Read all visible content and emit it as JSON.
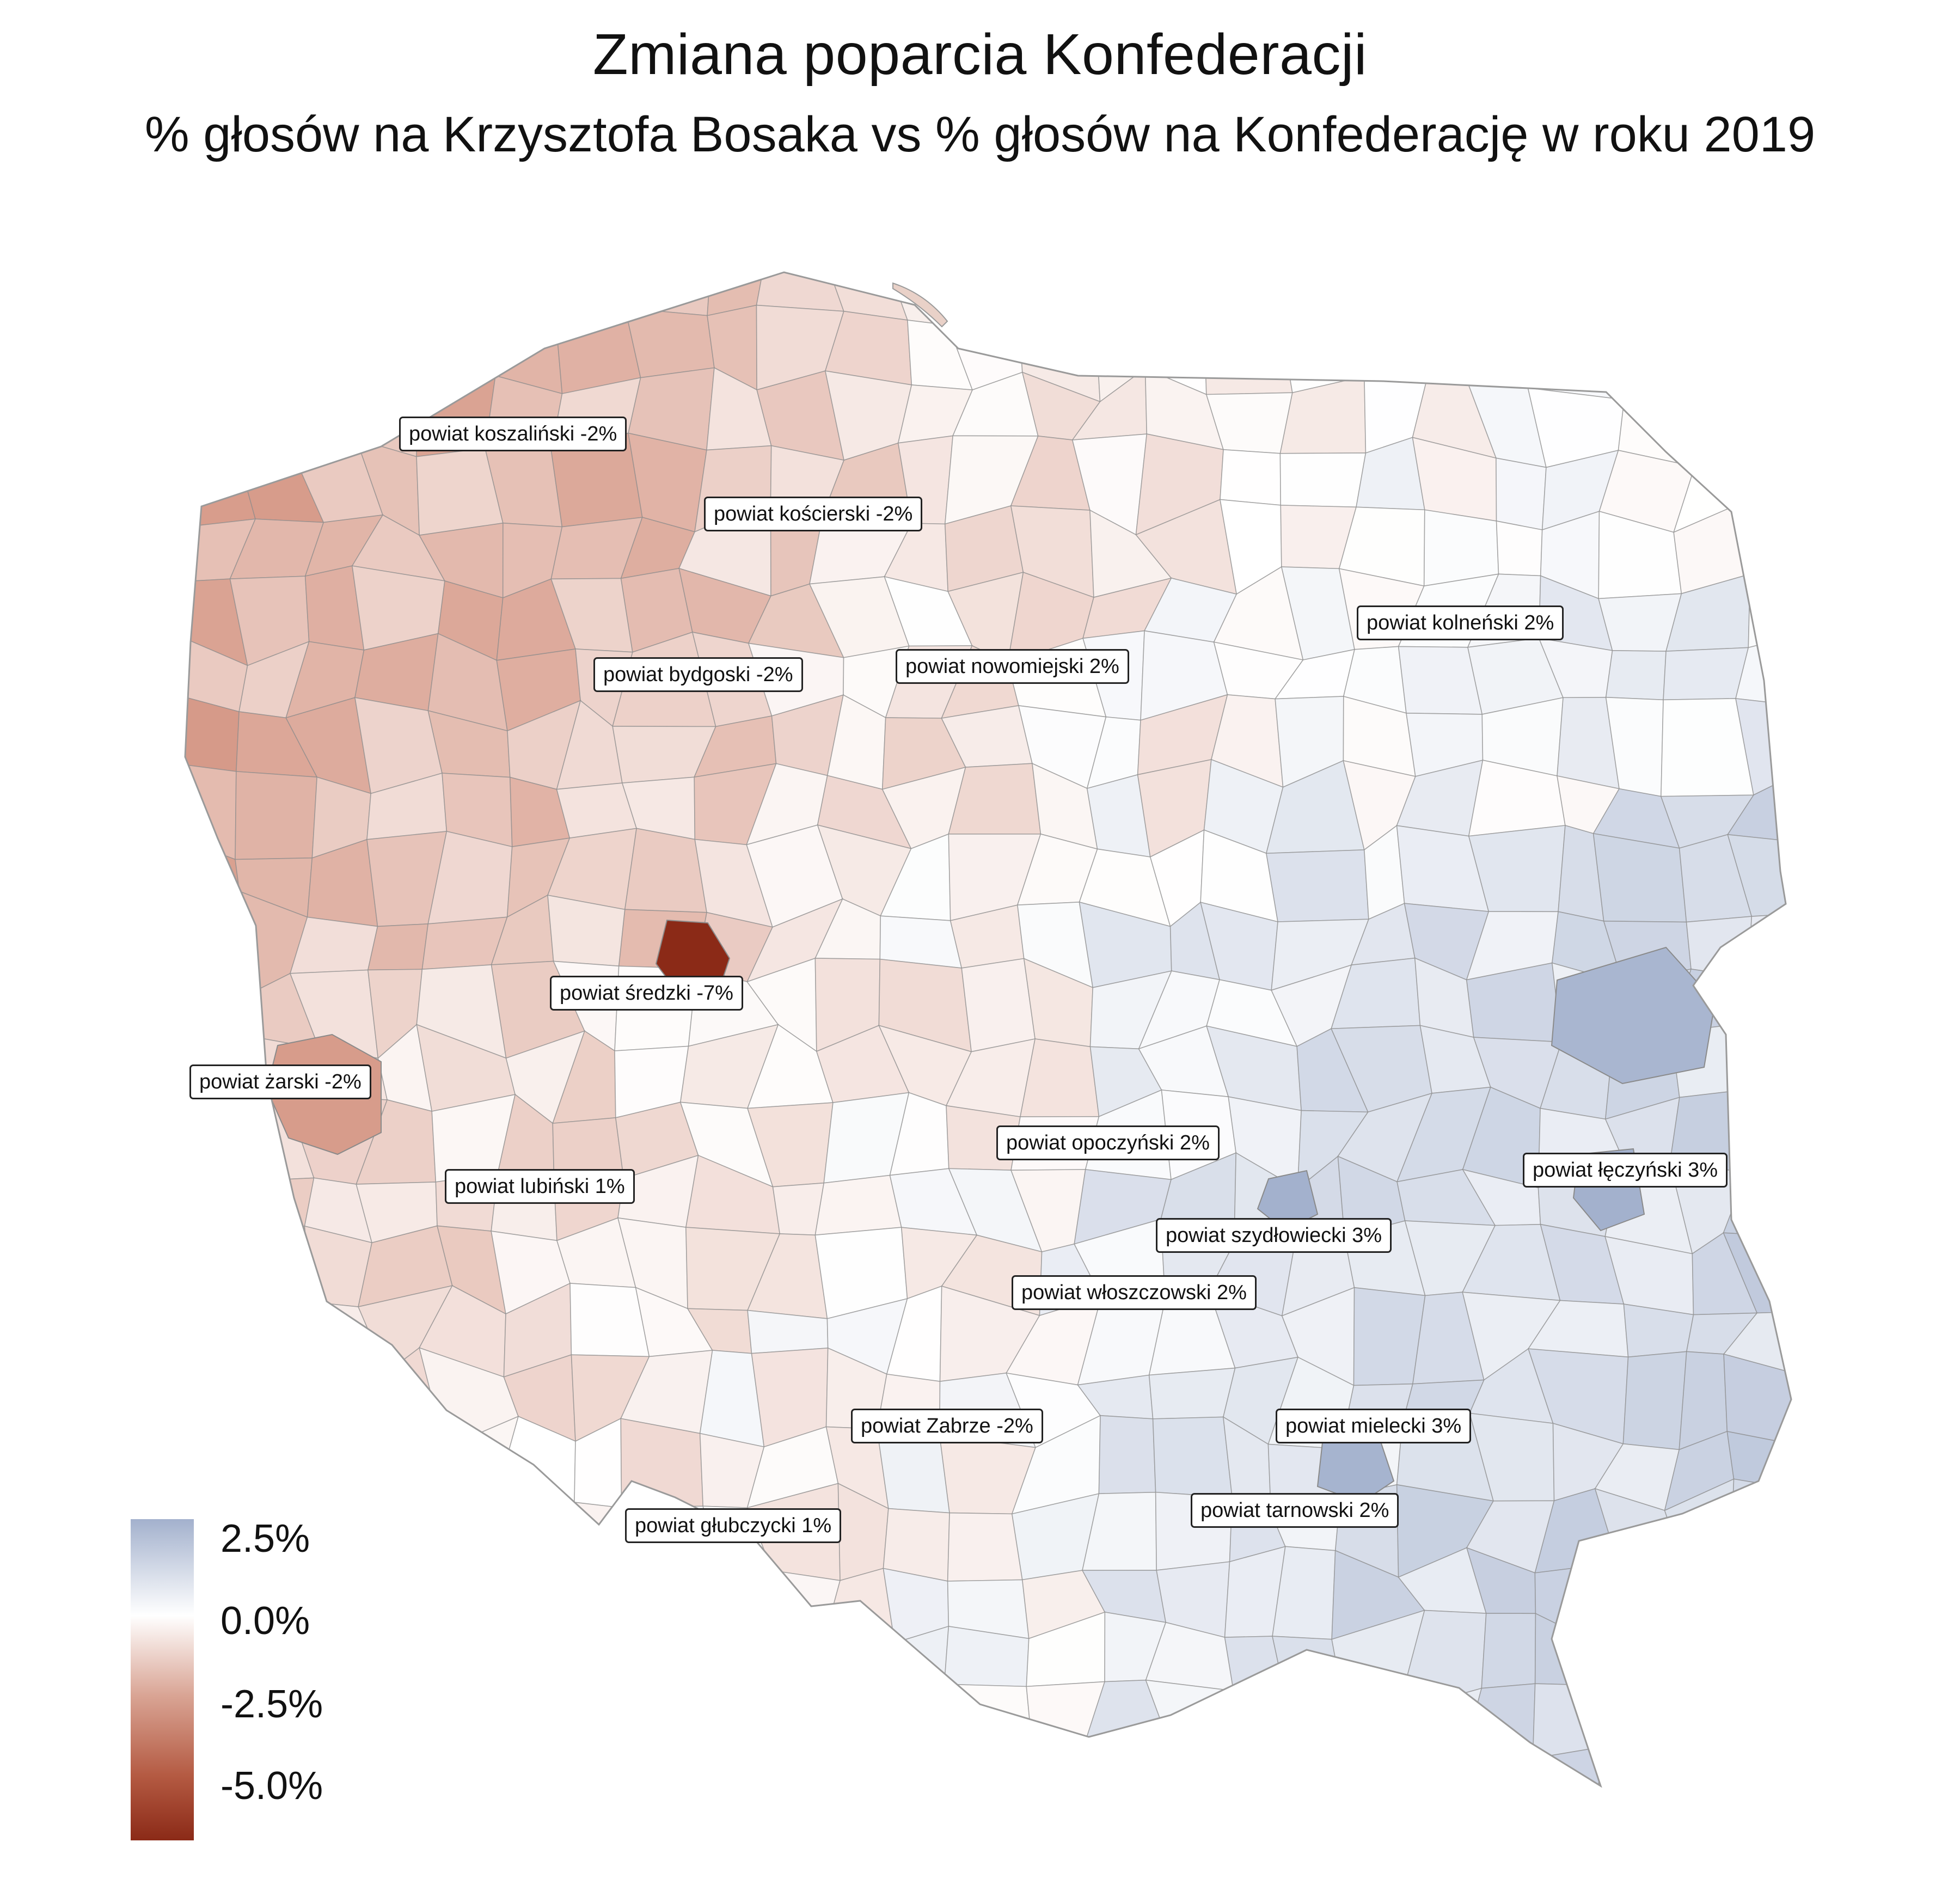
{
  "title": "Zmiana poparcia Konfederacji",
  "subtitle": "% głosów na Krzysztofa Bosaka vs % głosów na Konfederację w roku 2019",
  "colors": {
    "positive_max": "#a3b1cd",
    "neutral": "#ffffff",
    "negative_mid": "#c56f56",
    "negative_max": "#8b2a17",
    "border": "#8a8a8a"
  },
  "legend": {
    "labels": [
      "2.5%",
      "0.0%",
      "-2.5%",
      "-5.0%"
    ],
    "values": [
      2.5,
      0.0,
      -2.5,
      -5.0
    ],
    "min": -7,
    "max": 3
  },
  "callouts": [
    {
      "text": "powiat koszaliński -2%",
      "value": -2
    },
    {
      "text": "powiat kościerski -2%",
      "value": -2
    },
    {
      "text": "powiat kolneński 2%",
      "value": 2
    },
    {
      "text": "powiat bydgoski -2%",
      "value": -2
    },
    {
      "text": "powiat nowomiejski 2%",
      "value": 2
    },
    {
      "text": "powiat średzki -7%",
      "value": -7
    },
    {
      "text": "powiat żarski -2%",
      "value": -2
    },
    {
      "text": "powiat opoczyński 2%",
      "value": 2
    },
    {
      "text": "powiat łęczyński 3%",
      "value": 3
    },
    {
      "text": "powiat lubiński 1%",
      "value": 1
    },
    {
      "text": "powiat szydłowiecki 3%",
      "value": 3
    },
    {
      "text": "powiat włoszczowski 2%",
      "value": 2
    },
    {
      "text": "powiat Zabrze -2%",
      "value": -2
    },
    {
      "text": "powiat mielecki 3%",
      "value": 3
    },
    {
      "text": "powiat tarnowski 2%",
      "value": 2
    },
    {
      "text": "powiat głubczycki 1%",
      "value": 1
    }
  ]
}
